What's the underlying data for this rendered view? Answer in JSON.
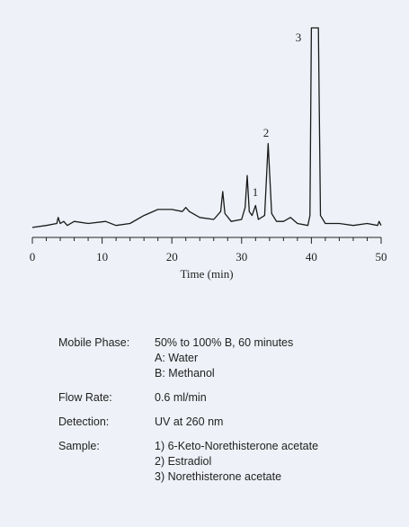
{
  "chart_data": {
    "type": "line",
    "x_label": "Time (min)",
    "x": [
      0,
      2,
      3.5,
      3.7,
      4.0,
      4.5,
      5.0,
      6,
      8,
      10.5,
      12,
      14,
      16,
      18,
      20,
      21.5,
      22,
      22.5,
      24,
      26,
      27,
      27.3,
      27.6,
      28.5,
      30,
      30.5,
      30.8,
      31.1,
      31.5,
      32,
      32.4,
      33.3,
      33.8,
      34.3,
      35,
      36,
      37,
      38,
      39.5,
      39.8,
      40.0,
      41.0,
      41.3,
      42,
      44,
      46,
      48,
      49.5,
      49.7,
      50
    ],
    "series": [
      {
        "color": "#1a1a1a",
        "values": [
          0,
          1,
          2,
          5,
          2,
          3,
          1,
          3,
          2,
          3,
          1,
          2,
          6,
          9,
          9,
          8,
          10,
          8,
          5,
          4,
          8,
          18,
          7,
          3,
          4,
          10,
          26,
          8,
          6,
          11,
          4,
          6,
          42,
          7,
          3,
          3,
          5,
          2,
          1,
          6,
          100,
          100,
          6,
          2,
          2,
          1,
          2,
          1,
          3,
          1
        ]
      }
    ],
    "xlim": [
      0,
      50
    ],
    "xticks": [
      0,
      10,
      20,
      30,
      40,
      50
    ],
    "minor_xticks": [
      2,
      4,
      6,
      8,
      12,
      14,
      16,
      18,
      22,
      24,
      26,
      28,
      32,
      34,
      36,
      38,
      42,
      44,
      46,
      48
    ],
    "ylim": [
      -5,
      100
    ],
    "peak_labels": [
      "1",
      "2",
      "3"
    ]
  },
  "conditions": [
    {
      "label": "Mobile Phase:",
      "lines": [
        "50% to 100% B, 60 minutes",
        "A: Water",
        "B: Methanol"
      ]
    },
    {
      "label": "Flow Rate:",
      "lines": [
        "0.6 ml/min"
      ]
    },
    {
      "label": "Detection:",
      "lines": [
        "UV at 260 nm"
      ]
    },
    {
      "label": "Sample:",
      "lines": [
        "1) 6-Keto-Norethisterone acetate",
        "2) Estradiol",
        "3) Norethisterone acetate"
      ]
    }
  ]
}
